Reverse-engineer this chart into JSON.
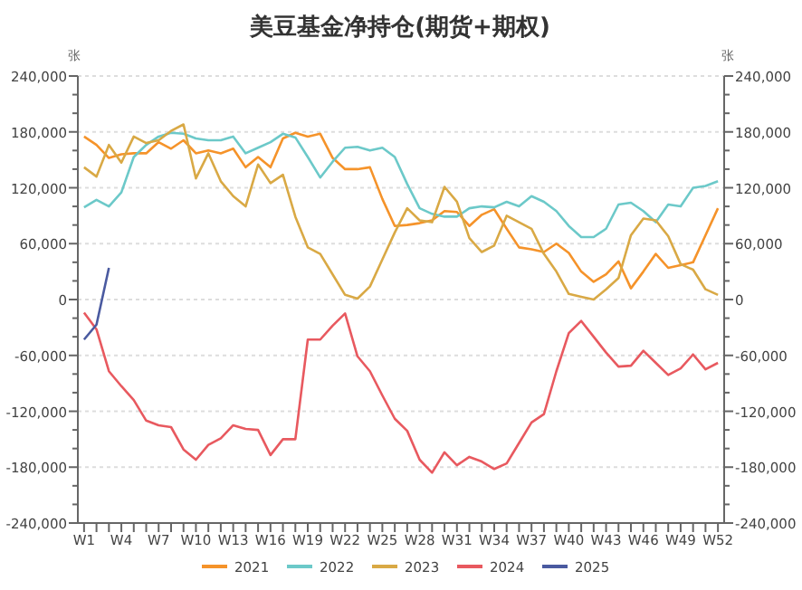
{
  "chart_data": {
    "type": "line",
    "title": "美豆基金净持仓(期货+期权)",
    "ylabel": "张",
    "y2label": "张",
    "categories": [
      "W1",
      null,
      null,
      "W4",
      null,
      null,
      "W7",
      null,
      null,
      "W10",
      null,
      null,
      "W13",
      null,
      null,
      "W16",
      null,
      null,
      "W19",
      null,
      null,
      "W22",
      null,
      null,
      "W25",
      null,
      null,
      "W28",
      null,
      null,
      "W31",
      null,
      null,
      "W34",
      null,
      null,
      "W37",
      null,
      null,
      "W40",
      null,
      null,
      "W43",
      null,
      null,
      "W46",
      null,
      null,
      "W49",
      null,
      null,
      "W52"
    ],
    "ylim": [
      -240000,
      240000
    ],
    "yticks": [
      {
        "value": -240000,
        "label": "-240,000"
      },
      {
        "value": -220000,
        "label": null
      },
      {
        "value": -200000,
        "label": null
      },
      {
        "value": -180000,
        "label": "-180,000"
      },
      {
        "value": -160000,
        "label": null
      },
      {
        "value": -140000,
        "label": null
      },
      {
        "value": -120000,
        "label": "-120,000"
      },
      {
        "value": -100000,
        "label": null
      },
      {
        "value": -80000,
        "label": null
      },
      {
        "value": -60000,
        "label": "-60,000"
      },
      {
        "value": -40000,
        "label": null
      },
      {
        "value": -20000,
        "label": null
      },
      0,
      {
        "value": 20000,
        "label": null
      },
      {
        "value": 40000,
        "label": null
      },
      {
        "value": 60000,
        "label": "60,000"
      },
      {
        "value": 80000,
        "label": null
      },
      {
        "value": 100000,
        "label": null
      },
      {
        "value": 120000,
        "label": "120,000"
      },
      {
        "value": 140000,
        "label": null
      },
      {
        "value": 160000,
        "label": null
      },
      {
        "value": 180000,
        "label": "180,000"
      },
      {
        "value": 200000,
        "label": null
      },
      {
        "value": 220000,
        "label": null
      },
      {
        "value": 240000,
        "label": "240,000"
      }
    ],
    "y2lim": [
      -240000,
      240000
    ],
    "y2ticks": [
      {
        "value": -240000,
        "label": "-240,000"
      },
      {
        "value": -220000,
        "label": null
      },
      {
        "value": -200000,
        "label": null
      },
      {
        "value": -180000,
        "label": "-180,000"
      },
      {
        "value": -160000,
        "label": null
      },
      {
        "value": -140000,
        "label": null
      },
      {
        "value": -120000,
        "label": "-120,000"
      },
      {
        "value": -100000,
        "label": null
      },
      {
        "value": -80000,
        "label": null
      },
      {
        "value": -60000,
        "label": "-60,000"
      },
      {
        "value": -40000,
        "label": null
      },
      {
        "value": -20000,
        "label": null
      },
      0,
      {
        "value": 20000,
        "label": null
      },
      {
        "value": 40000,
        "label": null
      },
      {
        "value": 60000,
        "label": "60,000"
      },
      {
        "value": 80000,
        "label": null
      },
      {
        "value": 100000,
        "label": null
      },
      {
        "value": 120000,
        "label": "120,000"
      },
      {
        "value": 140000,
        "label": null
      },
      {
        "value": 160000,
        "label": null
      },
      {
        "value": 180000,
        "label": "180,000"
      },
      {
        "value": 200000,
        "label": null
      },
      {
        "value": 220000,
        "label": null
      },
      {
        "value": 240000,
        "label": "240,000"
      }
    ],
    "grid": "y",
    "legend": "bottom",
    "marker": "none",
    "line_style": "solid",
    "series": [
      {
        "name": "2021",
        "color": "#f5932a",
        "values": [
          175000,
          166000,
          152000,
          156000,
          157000,
          157000,
          169000,
          162000,
          171000,
          157000,
          160000,
          157000,
          162000,
          142000,
          153000,
          142000,
          173000,
          179000,
          175000,
          178000,
          152000,
          140000,
          140000,
          142000,
          108000,
          79000,
          80000,
          82000,
          85000,
          95000,
          94000,
          79000,
          91000,
          97000,
          76000,
          56000,
          54000,
          51000,
          60000,
          50000,
          30000,
          19000,
          27000,
          41000,
          12000,
          30000,
          49000,
          34000,
          37000,
          40000,
          69000,
          98000
        ]
      },
      {
        "name": "2022",
        "color": "#6cc9c9",
        "values": [
          99000,
          107000,
          100000,
          115000,
          153000,
          166000,
          175000,
          179000,
          178000,
          173000,
          171000,
          171000,
          175000,
          157000,
          163000,
          169000,
          178000,
          174000,
          153000,
          131000,
          148000,
          163000,
          164000,
          160000,
          163000,
          153000,
          124000,
          98000,
          92000,
          89000,
          89000,
          98000,
          100000,
          99000,
          105000,
          100000,
          111000,
          105000,
          95000,
          79000,
          67000,
          67000,
          76000,
          102000,
          104000,
          95000,
          83000,
          102000,
          100000,
          120000,
          122000,
          127000
        ]
      },
      {
        "name": "2023",
        "color": "#d9a945",
        "values": [
          142000,
          132000,
          166000,
          147000,
          175000,
          168000,
          171000,
          181000,
          188000,
          130000,
          157000,
          127000,
          111000,
          100000,
          145000,
          125000,
          134000,
          89000,
          56000,
          49000,
          27000,
          5000,
          1000,
          14000,
          43000,
          72000,
          98000,
          85000,
          83000,
          121000,
          105000,
          66000,
          51000,
          58000,
          90000,
          83000,
          76000,
          49000,
          30000,
          6000,
          3000,
          0,
          11000,
          23000,
          69000,
          87000,
          85000,
          68000,
          38000,
          32000,
          11000,
          5000
        ]
      },
      {
        "name": "2024",
        "color": "#e8595f",
        "values": [
          -14000,
          -32000,
          -77000,
          -93000,
          -108000,
          -130000,
          -135000,
          -137000,
          -161000,
          -172000,
          -156000,
          -149000,
          -135000,
          -139000,
          -140000,
          -167000,
          -150000,
          -150000,
          -43000,
          -43000,
          -28000,
          -15000,
          -61000,
          -77000,
          -103000,
          -128000,
          -141000,
          -172000,
          -186000,
          -164000,
          -178000,
          -169000,
          -174000,
          -182000,
          -176000,
          -154000,
          -132000,
          -123000,
          -77000,
          -36000,
          -23000,
          -40000,
          -57000,
          -72000,
          -71000,
          -55000,
          -68000,
          -81000,
          -74000,
          -59000,
          -75000,
          -68000
        ]
      },
      {
        "name": "2025",
        "color": "#4a5aa0",
        "values": [
          -43000,
          -27000,
          34000,
          null,
          null,
          null,
          null,
          null,
          null,
          null,
          null,
          null,
          null,
          null,
          null,
          null,
          null,
          null,
          null,
          null,
          null,
          null,
          null,
          null,
          null,
          null,
          null,
          null,
          null,
          null,
          null,
          null,
          null,
          null,
          null,
          null,
          null,
          null,
          null,
          null,
          null,
          null,
          null,
          null,
          null,
          null,
          null,
          null,
          null,
          null,
          null,
          null
        ]
      }
    ]
  }
}
